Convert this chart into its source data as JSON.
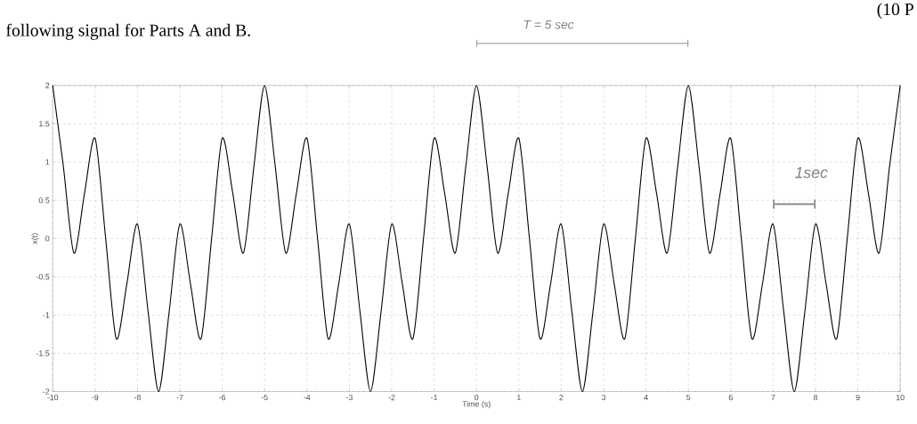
{
  "chart_data": {
    "type": "line",
    "title": "following signal for Parts A and B.",
    "xlabel": "Time (s)",
    "ylabel": "x(t)",
    "x": [
      -10,
      -9.75,
      -9.5,
      -9.25,
      -9,
      -8.75,
      -8.5,
      -8.25,
      -8,
      -7.75,
      -7.5,
      -7.25,
      -7,
      -6.75,
      -6.5,
      -6.25,
      -6,
      -5.75,
      -5.5,
      -5.25,
      -5,
      -4.75,
      -4.5,
      -4.25,
      -4,
      -3.75,
      -3.5,
      -3.25,
      -3,
      -2.75,
      -2.5,
      -2.25,
      -2,
      -1.75,
      -1.5,
      -1.25,
      -1,
      -0.75,
      -0.5,
      -0.25,
      0,
      0.25,
      0.5,
      0.75,
      1,
      1.25,
      1.5,
      1.75,
      2,
      2.25,
      2.5,
      2.75,
      3,
      3.25,
      3.5,
      3.75,
      4,
      4.25,
      4.5,
      4.75,
      5,
      5.25,
      5.5,
      5.75,
      6,
      6.25,
      6.5,
      6.75,
      7,
      7.25,
      7.5,
      7.75,
      8,
      8.25,
      8.5,
      8.75,
      9,
      9.25,
      9.5,
      9.75,
      10
    ],
    "series": [
      {
        "color": "#000000",
        "values": [
          2,
          0.95,
          -0.19,
          0.59,
          1.31,
          0,
          -1.31,
          -0.59,
          0.19,
          -0.95,
          -2,
          -0.95,
          0.19,
          -0.59,
          -1.31,
          0,
          1.31,
          0.59,
          -0.19,
          0.95,
          2,
          0.95,
          -0.19,
          0.59,
          1.31,
          0,
          -1.31,
          -0.59,
          0.19,
          -0.95,
          -2,
          -0.95,
          0.19,
          -0.59,
          -1.31,
          0,
          1.31,
          0.59,
          -0.19,
          0.95,
          2,
          0.95,
          -0.19,
          0.59,
          1.31,
          0,
          -1.31,
          -0.59,
          0.19,
          -0.95,
          -2,
          -0.95,
          0.19,
          -0.59,
          -1.31,
          0,
          1.31,
          0.59,
          -0.19,
          0.95,
          2,
          0.95,
          -0.19,
          0.59,
          1.31,
          0,
          -1.31,
          -0.59,
          0.19,
          -0.95,
          -2,
          -0.95,
          0.19,
          -0.59,
          -1.31,
          0,
          1.31,
          0.59,
          -0.19,
          0.95,
          2
        ]
      }
    ],
    "xlim": [
      -10,
      10
    ],
    "ylim": [
      -2,
      2
    ],
    "xticks": [
      -10,
      -9,
      -8,
      -7,
      -6,
      -5,
      -4,
      -3,
      -2,
      -1,
      0,
      1,
      2,
      3,
      4,
      5,
      6,
      7,
      8,
      9,
      10
    ],
    "yticks": [
      -2,
      -1.5,
      -1,
      -0.5,
      0,
      0.5,
      1,
      1.5,
      2
    ],
    "grid": true,
    "legend": false,
    "marker": "none",
    "line_style": "solid",
    "annotations": [
      "(10 P",
      "T = 5 sec",
      "1sec"
    ]
  }
}
